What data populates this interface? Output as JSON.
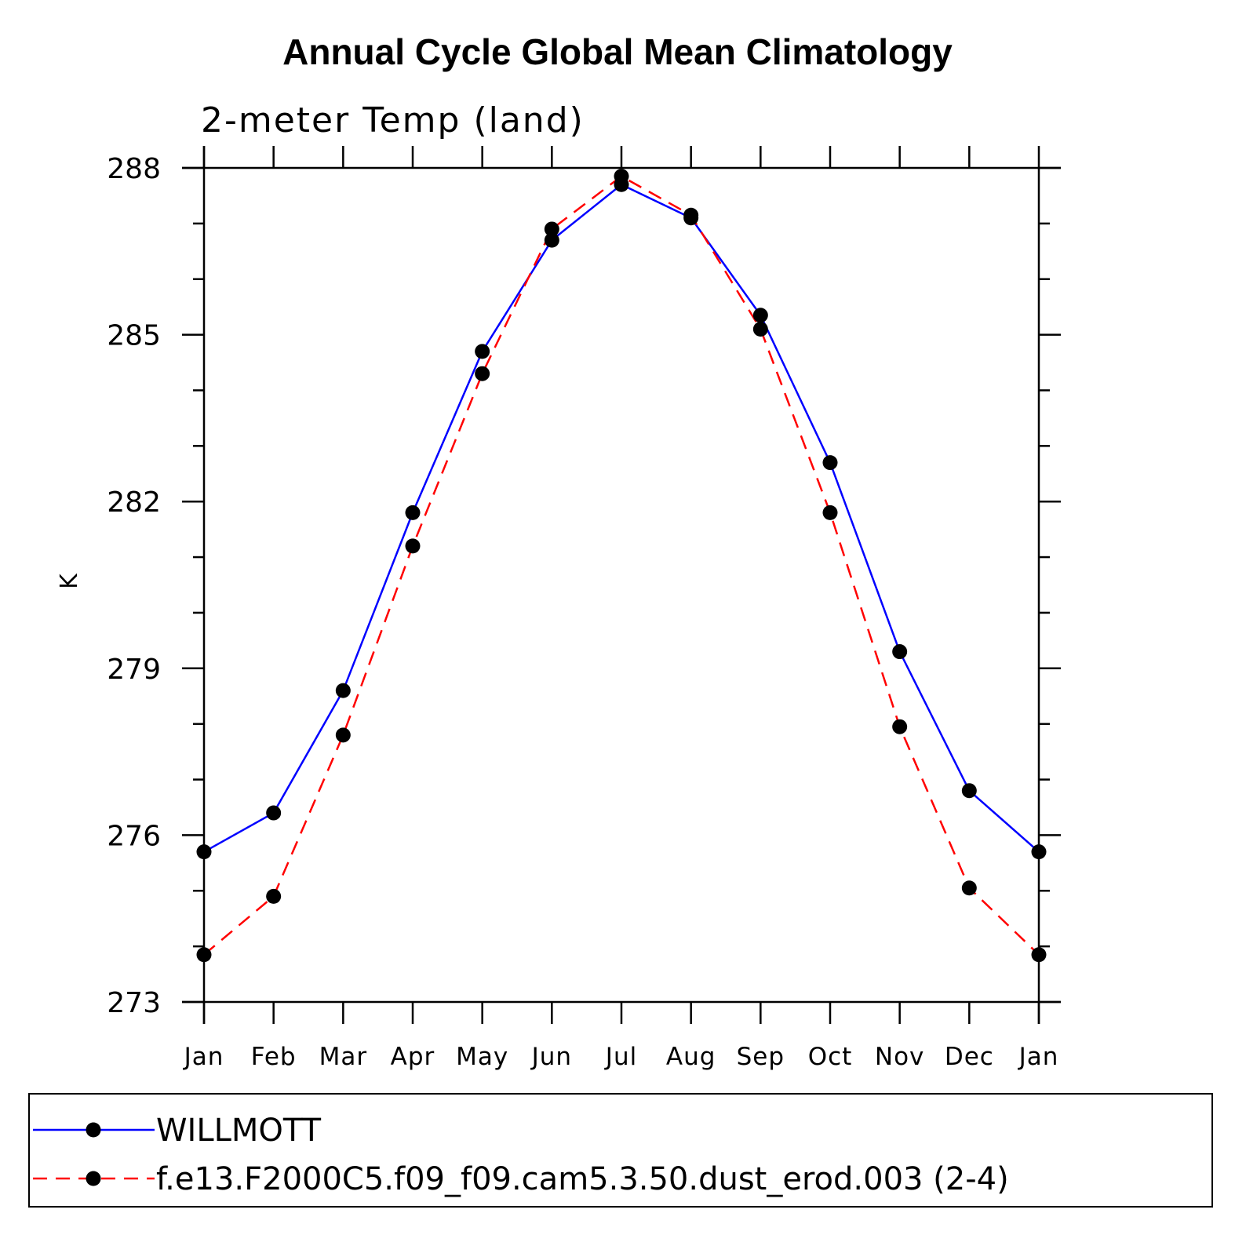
{
  "chart_data": {
    "type": "line",
    "title": "Annual Cycle Global Mean Climatology",
    "subtitle": "2-meter Temp (land)",
    "xlabel": "",
    "ylabel": "K",
    "categories": [
      "Jan",
      "Feb",
      "Mar",
      "Apr",
      "May",
      "Jun",
      "Jul",
      "Aug",
      "Sep",
      "Oct",
      "Nov",
      "Dec",
      "Jan"
    ],
    "ylim": [
      273,
      288
    ],
    "yticks": [
      273,
      276,
      279,
      282,
      285,
      288
    ],
    "y_minor_step": 1,
    "grid": false,
    "legend_position": "bottom",
    "series": [
      {
        "name": "WILLMOTT",
        "color": "#0000ff",
        "dash": "solid",
        "marker": "filled-circle",
        "values": [
          275.7,
          276.4,
          278.6,
          281.8,
          284.7,
          286.7,
          287.7,
          287.1,
          285.35,
          282.7,
          279.3,
          276.8,
          275.7
        ]
      },
      {
        "name": "f.e13.F2000C5.f09_f09.cam5.3.50.dust_erod.003 (2-4)",
        "color": "#ff0000",
        "dash": "dashed",
        "marker": "filled-circle",
        "values": [
          273.85,
          274.9,
          277.8,
          281.2,
          284.3,
          286.9,
          287.85,
          287.15,
          285.1,
          281.8,
          277.95,
          275.05,
          273.85
        ]
      }
    ]
  }
}
